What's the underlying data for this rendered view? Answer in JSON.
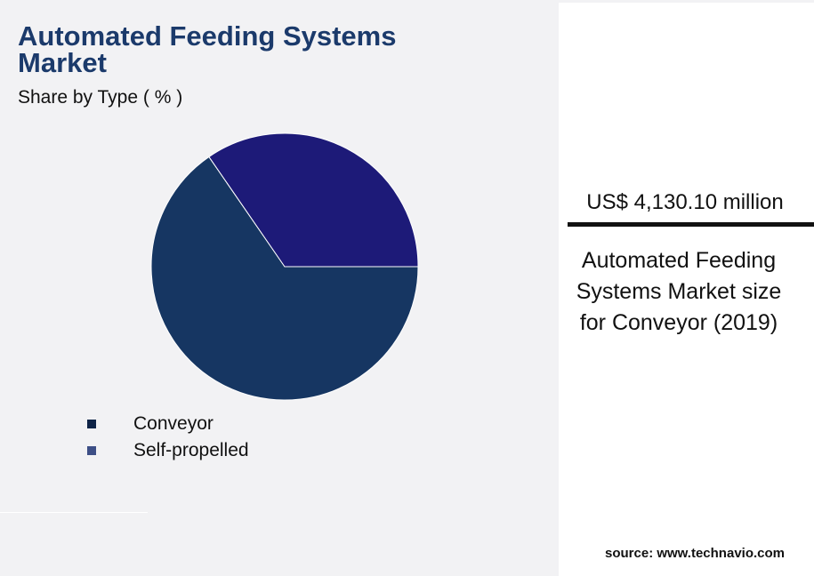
{
  "chart_data": {
    "type": "pie",
    "title": "Automated Feeding Systems Market",
    "subtitle": "Share by Type ( % )",
    "categories": [
      "Conveyor",
      "Self-propelled"
    ],
    "values": [
      65.4,
      34.6
    ],
    "colors": [
      "#163662",
      "#1d1a78"
    ],
    "legend": {
      "placement": "bottom-left",
      "entries": [
        {
          "label": "Conveyor",
          "color": "#0f2447"
        },
        {
          "label": "Self-propelled",
          "color": "#3d4f86"
        }
      ]
    }
  },
  "highlight": {
    "value": "US$ 4,130.10 million",
    "caption": "Automated Feeding Systems Market size for Conveyor (2019)"
  },
  "source": "source: www.technavio.com"
}
